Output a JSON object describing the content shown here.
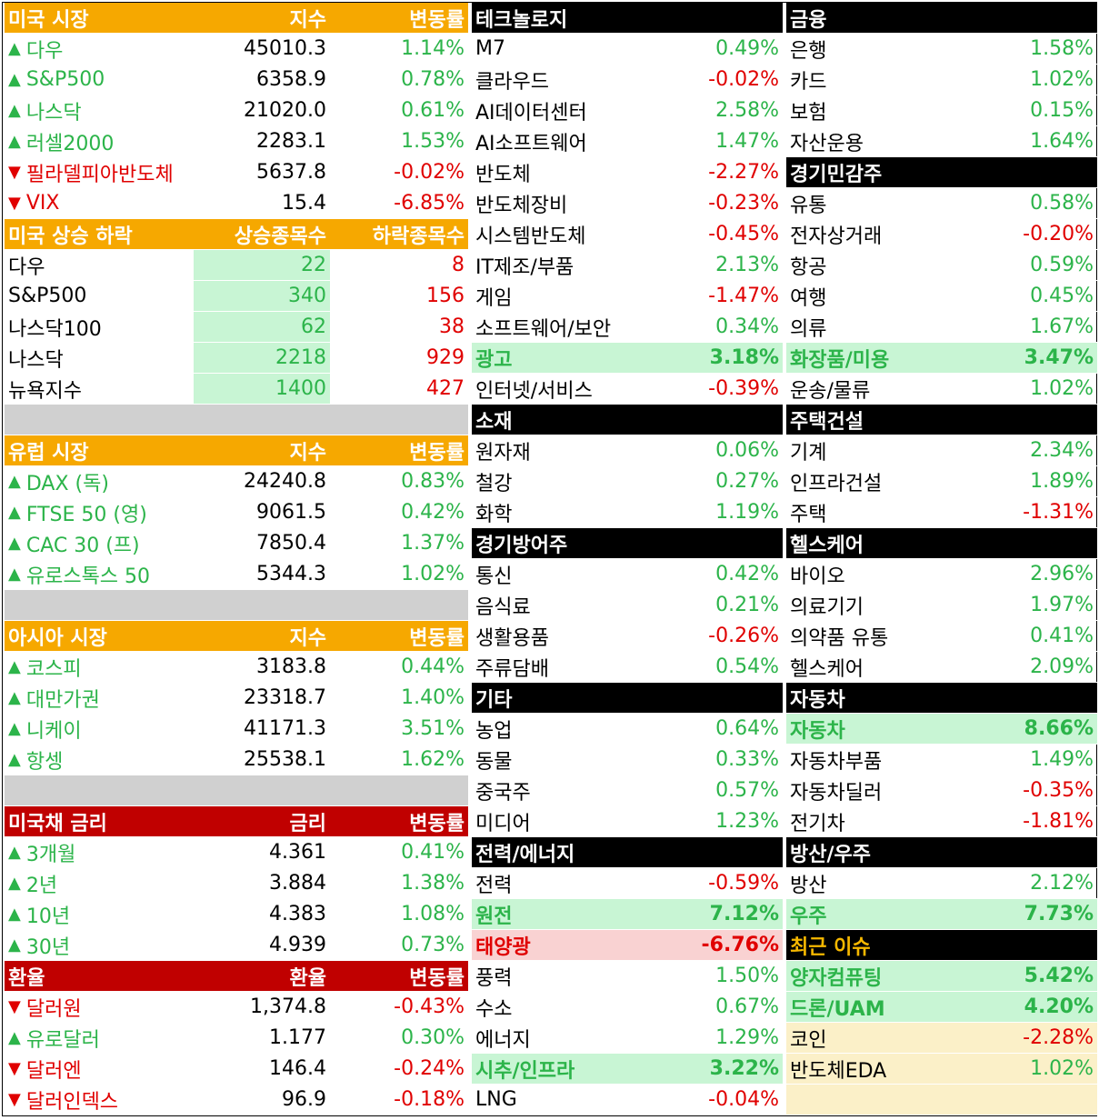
{
  "us_market": {
    "header": {
      "title": "미국 시장",
      "col1": "지수",
      "col2": "변동률"
    },
    "rows": [
      {
        "arrow": "▲",
        "name": "다우",
        "value": "45010.3",
        "change": "1.14%",
        "dir": "up"
      },
      {
        "arrow": "▲",
        "name": "S&P500",
        "value": "6358.9",
        "change": "0.78%",
        "dir": "up"
      },
      {
        "arrow": "▲",
        "name": "나스닥",
        "value": "21020.0",
        "change": "0.61%",
        "dir": "up"
      },
      {
        "arrow": "▲",
        "name": "러셀2000",
        "value": "2283.1",
        "change": "1.53%",
        "dir": "up"
      },
      {
        "arrow": "▼",
        "name": "필라델피아반도체",
        "value": "5637.8",
        "change": "-0.02%",
        "dir": "down"
      },
      {
        "arrow": "▼",
        "name": "VIX",
        "value": "15.4",
        "change": "-6.85%",
        "dir": "down"
      }
    ]
  },
  "us_breadth": {
    "header": {
      "title": "미국 상승 하락",
      "col1": "상승종목수",
      "col2": "하락종목수"
    },
    "rows": [
      {
        "name": "다우",
        "up": "22",
        "down": "8"
      },
      {
        "name": "S&P500",
        "up": "340",
        "down": "156"
      },
      {
        "name": "나스닥100",
        "up": "62",
        "down": "38"
      },
      {
        "name": "나스닥",
        "up": "2218",
        "down": "929"
      },
      {
        "name": "뉴욕지수",
        "up": "1400",
        "down": "427"
      }
    ]
  },
  "europe": {
    "header": {
      "title": "유럽 시장",
      "col1": "지수",
      "col2": "변동률"
    },
    "rows": [
      {
        "arrow": "▲",
        "name": "DAX (독)",
        "value": "24240.8",
        "change": "0.83%",
        "dir": "up"
      },
      {
        "arrow": "▲",
        "name": "FTSE 50 (영)",
        "value": "9061.5",
        "change": "0.42%",
        "dir": "up"
      },
      {
        "arrow": "▲",
        "name": "CAC 30 (프)",
        "value": "7850.4",
        "change": "1.37%",
        "dir": "up"
      },
      {
        "arrow": "▲",
        "name": "유로스톡스 50",
        "value": "5344.3",
        "change": "1.02%",
        "dir": "up"
      }
    ]
  },
  "asia": {
    "header": {
      "title": "아시아 시장",
      "col1": "지수",
      "col2": "변동률"
    },
    "rows": [
      {
        "arrow": "▲",
        "name": "코스피",
        "value": "3183.8",
        "change": "0.44%",
        "dir": "up"
      },
      {
        "arrow": "▲",
        "name": "대만가권",
        "value": "23318.7",
        "change": "1.40%",
        "dir": "up"
      },
      {
        "arrow": "▲",
        "name": "니케이",
        "value": "41171.3",
        "change": "3.51%",
        "dir": "up"
      },
      {
        "arrow": "▲",
        "name": "항셍",
        "value": "25538.1",
        "change": "1.62%",
        "dir": "up"
      }
    ]
  },
  "treasury": {
    "header": {
      "title": "미국채 금리",
      "col1": "금리",
      "col2": "변동률"
    },
    "rows": [
      {
        "arrow": "▲",
        "name": "3개월",
        "value": "4.361",
        "change": "0.41%",
        "dir": "up"
      },
      {
        "arrow": "▲",
        "name": "2년",
        "value": "3.884",
        "change": "1.38%",
        "dir": "up"
      },
      {
        "arrow": "▲",
        "name": "10년",
        "value": "4.383",
        "change": "1.08%",
        "dir": "up"
      },
      {
        "arrow": "▲",
        "name": "30년",
        "value": "4.939",
        "change": "0.73%",
        "dir": "up"
      }
    ]
  },
  "fx": {
    "header": {
      "title": "환율",
      "col1": "환율",
      "col2": "변동률"
    },
    "rows": [
      {
        "arrow": "▼",
        "name": "달러원",
        "value": "1,374.8",
        "change": "-0.43%",
        "dir": "down"
      },
      {
        "arrow": "▲",
        "name": "유로달러",
        "value": "1.177",
        "change": "0.30%",
        "dir": "up"
      },
      {
        "arrow": "▼",
        "name": "달러엔",
        "value": "146.4",
        "change": "-0.24%",
        "dir": "down"
      },
      {
        "arrow": "▼",
        "name": "달러인덱스",
        "value": "96.9",
        "change": "-0.18%",
        "dir": "down"
      }
    ]
  },
  "sectors_mid": [
    {
      "title": "테크놀로지",
      "rows": [
        {
          "name": "M7",
          "change": "0.49%",
          "dir": "up"
        },
        {
          "name": "클라우드",
          "change": "-0.02%",
          "dir": "down"
        },
        {
          "name": "AI데이터센터",
          "change": "2.58%",
          "dir": "up"
        },
        {
          "name": "AI소프트웨어",
          "change": "1.47%",
          "dir": "up"
        },
        {
          "name": "반도체",
          "change": "-2.27%",
          "dir": "down"
        },
        {
          "name": "반도체장비",
          "change": "-0.23%",
          "dir": "down"
        },
        {
          "name": "시스템반도체",
          "change": "-0.45%",
          "dir": "down"
        },
        {
          "name": "IT제조/부품",
          "change": "2.13%",
          "dir": "up"
        },
        {
          "name": "게임",
          "change": "-1.47%",
          "dir": "down"
        },
        {
          "name": "소프트웨어/보안",
          "change": "0.34%",
          "dir": "up"
        },
        {
          "name": "광고",
          "change": "3.18%",
          "dir": "up",
          "hot": "green"
        },
        {
          "name": "인터넷/서비스",
          "change": "-0.39%",
          "dir": "down"
        }
      ]
    },
    {
      "title": "소재",
      "rows": [
        {
          "name": "원자재",
          "change": "0.06%",
          "dir": "up"
        },
        {
          "name": "철강",
          "change": "0.27%",
          "dir": "up"
        },
        {
          "name": "화학",
          "change": "1.19%",
          "dir": "up"
        }
      ]
    },
    {
      "title": "경기방어주",
      "rows": [
        {
          "name": "통신",
          "change": "0.42%",
          "dir": "up"
        },
        {
          "name": "음식료",
          "change": "0.21%",
          "dir": "up"
        },
        {
          "name": "생활용품",
          "change": "-0.26%",
          "dir": "down"
        },
        {
          "name": "주류담배",
          "change": "0.54%",
          "dir": "up"
        }
      ]
    },
    {
      "title": "기타",
      "rows": [
        {
          "name": "농업",
          "change": "0.64%",
          "dir": "up"
        },
        {
          "name": "동물",
          "change": "0.33%",
          "dir": "up"
        },
        {
          "name": "중국주",
          "change": "0.57%",
          "dir": "up"
        },
        {
          "name": "미디어",
          "change": "1.23%",
          "dir": "up"
        }
      ]
    },
    {
      "title": "전력/에너지",
      "rows": [
        {
          "name": "전력",
          "change": "-0.59%",
          "dir": "down"
        },
        {
          "name": "원전",
          "change": "7.12%",
          "dir": "up",
          "hot": "green"
        },
        {
          "name": "태양광",
          "change": "-6.76%",
          "dir": "down",
          "hot": "pink"
        },
        {
          "name": "풍력",
          "change": "1.50%",
          "dir": "up"
        },
        {
          "name": "수소",
          "change": "0.67%",
          "dir": "up"
        },
        {
          "name": "에너지",
          "change": "1.29%",
          "dir": "up"
        },
        {
          "name": "시추/인프라",
          "change": "3.22%",
          "dir": "up",
          "hot": "green"
        },
        {
          "name": "LNG",
          "change": "-0.04%",
          "dir": "down"
        }
      ]
    }
  ],
  "sectors_right": [
    {
      "title": "금융",
      "rows": [
        {
          "name": "은행",
          "change": "1.58%",
          "dir": "up"
        },
        {
          "name": "카드",
          "change": "1.02%",
          "dir": "up"
        },
        {
          "name": "보험",
          "change": "0.15%",
          "dir": "up"
        },
        {
          "name": "자산운용",
          "change": "1.64%",
          "dir": "up"
        }
      ]
    },
    {
      "title": "경기민감주",
      "rows": [
        {
          "name": "유통",
          "change": "0.58%",
          "dir": "up"
        },
        {
          "name": "전자상거래",
          "change": "-0.20%",
          "dir": "down"
        },
        {
          "name": "항공",
          "change": "0.59%",
          "dir": "up"
        },
        {
          "name": "여행",
          "change": "0.45%",
          "dir": "up"
        },
        {
          "name": "의류",
          "change": "1.67%",
          "dir": "up"
        },
        {
          "name": "화장품/미용",
          "change": "3.47%",
          "dir": "up",
          "hot": "green"
        },
        {
          "name": "운송/물류",
          "change": "1.02%",
          "dir": "up"
        }
      ]
    },
    {
      "title": "주택건설",
      "rows": [
        {
          "name": "기계",
          "change": "2.34%",
          "dir": "up"
        },
        {
          "name": "인프라건설",
          "change": "1.89%",
          "dir": "up"
        },
        {
          "name": "주택",
          "change": "-1.31%",
          "dir": "down"
        }
      ]
    },
    {
      "title": "헬스케어",
      "rows": [
        {
          "name": "바이오",
          "change": "2.96%",
          "dir": "up"
        },
        {
          "name": "의료기기",
          "change": "1.97%",
          "dir": "up"
        },
        {
          "name": "의약품 유통",
          "change": "0.41%",
          "dir": "up"
        },
        {
          "name": "헬스케어",
          "change": "2.09%",
          "dir": "up"
        }
      ]
    },
    {
      "title": "자동차",
      "rows": [
        {
          "name": "자동차",
          "change": "8.66%",
          "dir": "up",
          "hot": "green"
        },
        {
          "name": "자동차부품",
          "change": "1.49%",
          "dir": "up"
        },
        {
          "name": "자동차딜러",
          "change": "-0.35%",
          "dir": "down"
        },
        {
          "name": "전기차",
          "change": "-1.81%",
          "dir": "down"
        }
      ]
    },
    {
      "title": "방산/우주",
      "rows": [
        {
          "name": "방산",
          "change": "2.12%",
          "dir": "up"
        },
        {
          "name": "우주",
          "change": "7.73%",
          "dir": "up",
          "hot": "green"
        }
      ]
    },
    {
      "title": "최근 이슈",
      "highlight": true,
      "rows": [
        {
          "name": "양자컴퓨팅",
          "change": "5.42%",
          "dir": "up",
          "hot": "green"
        },
        {
          "name": "드론/UAM",
          "change": "4.20%",
          "dir": "up",
          "hot": "green"
        },
        {
          "name": "코인",
          "change": "-2.28%",
          "dir": "down",
          "bg": "cream"
        },
        {
          "name": "반도체EDA",
          "change": "1.02%",
          "dir": "up",
          "bg": "cream",
          "namecolor": "black"
        },
        {
          "name": "",
          "change": "",
          "dir": "none",
          "bg": "cream"
        }
      ]
    }
  ]
}
